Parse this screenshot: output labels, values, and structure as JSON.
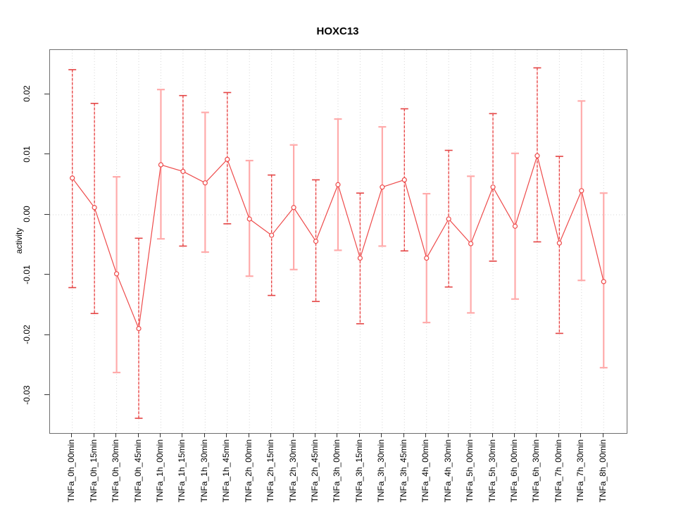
{
  "chart_data": {
    "type": "line",
    "title": "HOXC13",
    "xlabel": "",
    "ylabel": "activity",
    "ylim": [
      -0.0362,
      0.0274
    ],
    "yticks": [
      0.02,
      0.01,
      0.0,
      -0.01,
      -0.02,
      -0.03
    ],
    "ytick_labels": [
      "0.02",
      "0.01",
      "0.00",
      "-0.01",
      "-0.02",
      "-0.03"
    ],
    "legend": "none",
    "grid": "dotted vertical gridline at every category; dotted horizontal line at y=0",
    "categories": [
      "TNFa_0h_00min",
      "TNFa_0h_15min",
      "TNFa_0h_30min",
      "TNFa_0h_45min",
      "TNFa_1h_00min",
      "TNFa_1h_15min",
      "TNFa_1h_30min",
      "TNFa_1h_45min",
      "TNFa_2h_00min",
      "TNFa_2h_15min",
      "TNFa_2h_30min",
      "TNFa_2h_45min",
      "TNFa_3h_00min",
      "TNFa_3h_15min",
      "TNFa_3h_30min",
      "TNFa_3h_45min",
      "TNFa_4h_00min",
      "TNFa_4h_30min",
      "TNFa_5h_00min",
      "TNFa_5h_30min",
      "TNFa_6h_00min",
      "TNFa_6h_30min",
      "TNFa_7h_00min",
      "TNFa_7h_30min",
      "TNFa_8h_00min"
    ],
    "series": [
      {
        "name": "activity",
        "marker": "open-circle",
        "values": [
          0.0061,
          0.0012,
          -0.0098,
          -0.0189,
          0.0083,
          0.0072,
          0.0053,
          0.0092,
          -0.0007,
          -0.0034,
          0.0012,
          -0.0044,
          0.005,
          -0.0072,
          0.0046,
          0.0058,
          -0.0072,
          -0.0007,
          -0.0048,
          0.0046,
          -0.0019,
          0.0098,
          -0.0047,
          0.004,
          -0.0111
        ],
        "ci_high": [
          0.0241,
          0.0185,
          0.0063,
          -0.0039,
          0.0208,
          0.0198,
          0.017,
          0.0203,
          0.009,
          0.0066,
          0.0116,
          0.0058,
          0.0159,
          0.0036,
          0.0146,
          0.0176,
          0.0035,
          0.0107,
          0.0064,
          0.0168,
          0.0102,
          0.0244,
          0.0097,
          0.0189,
          0.0036
        ],
        "ci_low": [
          -0.0121,
          -0.0164,
          -0.0262,
          -0.0338,
          -0.004,
          -0.0052,
          -0.0062,
          -0.0015,
          -0.0102,
          -0.0134,
          -0.0091,
          -0.0144,
          -0.0059,
          -0.0181,
          -0.0052,
          -0.006,
          -0.0179,
          -0.012,
          -0.0163,
          -0.0077,
          -0.014,
          -0.0045,
          -0.0197,
          -0.0109,
          -0.0254
        ],
        "error_bar_styles": [
          "dashed",
          "dashed",
          "pink",
          "dashed",
          "pink",
          "dashed",
          "pink",
          "dashed",
          "pink",
          "dashed",
          "pink",
          "dashed",
          "pink",
          "dashed",
          "pink",
          "dashed",
          "pink",
          "dashed",
          "pink",
          "dashed",
          "pink",
          "dashed",
          "dashed",
          "pink",
          "pink"
        ]
      }
    ]
  },
  "colors": {
    "line_red": "#ee4a4a",
    "dash_red": "#e44343",
    "bar_pink": "#ffabab",
    "bar_pink_underlay": "#ffc9c9",
    "grid_gray": "#d6d6d6",
    "frame_gray": "#6e6e6e",
    "tick_dark": "#333333",
    "text_black": "#000000",
    "marker_fill": "#ffffff"
  }
}
